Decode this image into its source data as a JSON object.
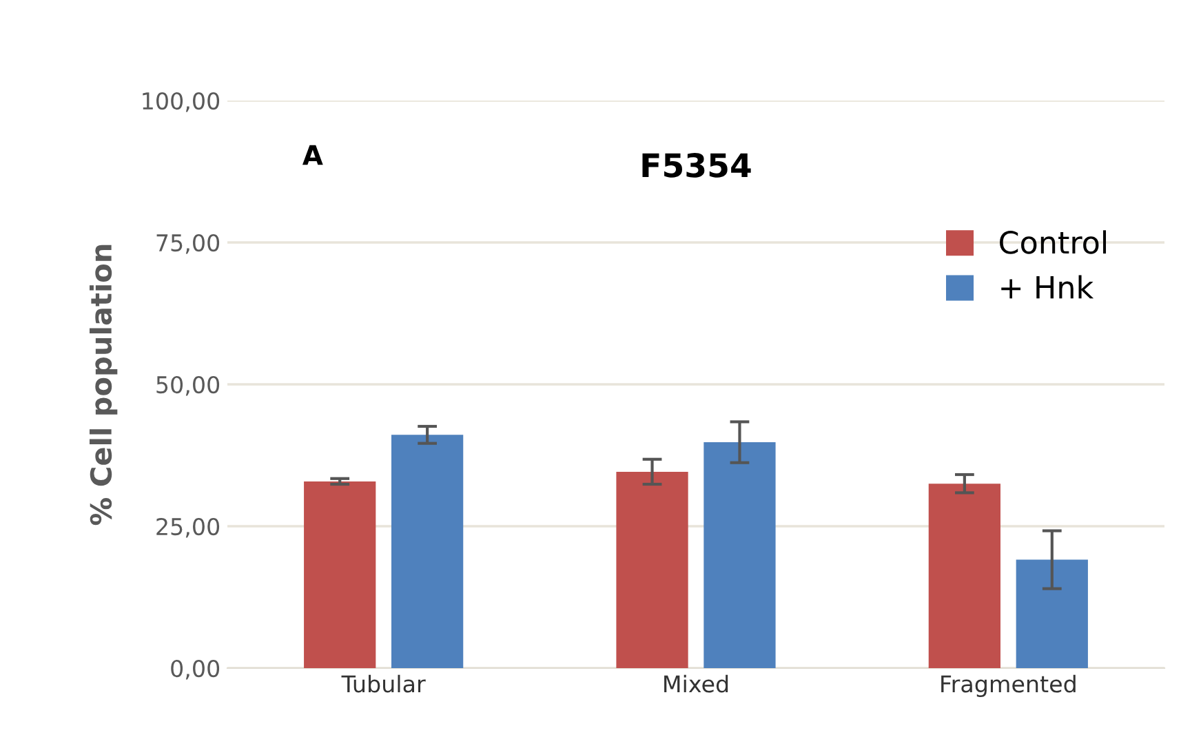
{
  "chart_data": {
    "type": "bar",
    "title": "F5354",
    "ylabel": "% Cell population",
    "annotations": [
      "A"
    ],
    "categories": [
      "Tubular",
      "Mixed",
      "Fragmented"
    ],
    "series": [
      {
        "name": "Control",
        "color": "#c0504d",
        "values": [
          32.9,
          34.6,
          32.5
        ],
        "errors": [
          0.5,
          2.2,
          1.6
        ]
      },
      {
        "name": "+ Hnk",
        "color": "#4f81bd",
        "values": [
          41.1,
          39.8,
          19.1
        ],
        "errors": [
          1.5,
          3.6,
          5.1
        ]
      }
    ],
    "ylim": [
      0,
      100
    ],
    "yticks": [
      {
        "value": 0,
        "label": "0,00"
      },
      {
        "value": 25,
        "label": "25,00"
      },
      {
        "value": 50,
        "label": "50,00"
      },
      {
        "value": 75,
        "label": "75,00"
      },
      {
        "value": 100,
        "label": "100,00"
      }
    ],
    "grid": "y",
    "legend": "top right"
  }
}
